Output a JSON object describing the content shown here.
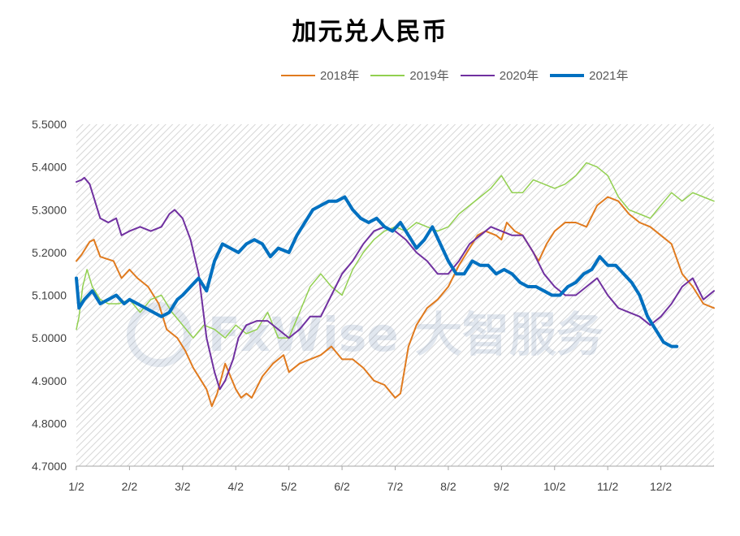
{
  "chart_data": {
    "type": "line",
    "title": "加元兑人民币",
    "xlabel": "",
    "ylabel": "",
    "ylim": [
      4.7,
      5.5
    ],
    "yticks": [
      "5.5000",
      "5.4000",
      "5.3000",
      "5.2000",
      "5.1000",
      "5.0000",
      "4.9000",
      "4.8000",
      "4.7000"
    ],
    "x_tick_labels": [
      "1/2",
      "2/2",
      "3/2",
      "4/2",
      "5/2",
      "6/2",
      "7/2",
      "8/2",
      "9/2",
      "10/2",
      "11/2",
      "12/2"
    ],
    "x_unit": "month (Jan=0 … Dec=11)",
    "grid": "hatched background",
    "legend_position": "top-right",
    "watermark": "FxWise 大智服务",
    "series": [
      {
        "name": "2018年",
        "color": "#E07A1E",
        "line_width": 2,
        "x": [
          0,
          0.1,
          0.25,
          0.33,
          0.45,
          0.7,
          0.85,
          1.0,
          1.15,
          1.35,
          1.55,
          1.7,
          1.9,
          2.05,
          2.2,
          2.35,
          2.45,
          2.55,
          2.65,
          2.8,
          3.0,
          3.1,
          3.2,
          3.3,
          3.5,
          3.7,
          3.9,
          4.0,
          4.2,
          4.4,
          4.6,
          4.8,
          5.0,
          5.2,
          5.4,
          5.6,
          5.8,
          6.0,
          6.1,
          6.25,
          6.4,
          6.6,
          6.8,
          7.0,
          7.2,
          7.4,
          7.55,
          7.7,
          7.9,
          8.0,
          8.1,
          8.25,
          8.4,
          8.55,
          8.7,
          8.85,
          9.0,
          9.2,
          9.4,
          9.6,
          9.8,
          10.0,
          10.2,
          10.4,
          10.6,
          10.8,
          11.0,
          11.2,
          11.4,
          11.6,
          11.8,
          12.0
        ],
        "y": [
          5.18,
          5.195,
          5.225,
          5.23,
          5.19,
          5.18,
          5.14,
          5.16,
          5.14,
          5.12,
          5.08,
          5.02,
          5.0,
          4.97,
          4.93,
          4.9,
          4.88,
          4.84,
          4.87,
          4.94,
          4.88,
          4.86,
          4.87,
          4.86,
          4.91,
          4.94,
          4.96,
          4.92,
          4.94,
          4.95,
          4.96,
          4.98,
          4.95,
          4.95,
          4.93,
          4.9,
          4.89,
          4.86,
          4.87,
          4.98,
          5.03,
          5.07,
          5.09,
          5.12,
          5.17,
          5.21,
          5.24,
          5.25,
          5.24,
          5.23,
          5.27,
          5.25,
          5.24,
          5.21,
          5.18,
          5.22,
          5.25,
          5.27,
          5.27,
          5.26,
          5.31,
          5.33,
          5.32,
          5.29,
          5.27,
          5.26,
          5.24,
          5.22,
          5.15,
          5.12,
          5.08,
          5.07
        ]
      },
      {
        "name": "2019年",
        "color": "#92D050",
        "line_width": 1.5,
        "x": [
          0,
          0.05,
          0.12,
          0.2,
          0.3,
          0.45,
          0.6,
          0.8,
          1.0,
          1.2,
          1.4,
          1.6,
          1.8,
          2.0,
          2.2,
          2.4,
          2.6,
          2.8,
          3.0,
          3.2,
          3.4,
          3.6,
          3.8,
          4.0,
          4.2,
          4.4,
          4.6,
          4.8,
          5.0,
          5.2,
          5.4,
          5.6,
          5.8,
          6.0,
          6.2,
          6.4,
          6.6,
          6.8,
          7.0,
          7.2,
          7.4,
          7.6,
          7.8,
          8.0,
          8.2,
          8.4,
          8.6,
          8.8,
          9.0,
          9.2,
          9.4,
          9.6,
          9.8,
          10.0,
          10.2,
          10.4,
          10.6,
          10.8,
          11.0,
          11.2,
          11.4,
          11.6,
          11.8,
          12.0
        ],
        "y": [
          5.02,
          5.05,
          5.12,
          5.16,
          5.12,
          5.09,
          5.08,
          5.08,
          5.09,
          5.06,
          5.09,
          5.1,
          5.06,
          5.03,
          5.0,
          5.03,
          5.02,
          5.0,
          5.03,
          5.01,
          5.02,
          5.06,
          5.0,
          5.0,
          5.06,
          5.12,
          5.15,
          5.12,
          5.1,
          5.16,
          5.2,
          5.23,
          5.25,
          5.26,
          5.25,
          5.27,
          5.26,
          5.25,
          5.26,
          5.29,
          5.31,
          5.33,
          5.35,
          5.38,
          5.34,
          5.34,
          5.37,
          5.36,
          5.35,
          5.36,
          5.38,
          5.41,
          5.4,
          5.38,
          5.33,
          5.3,
          5.29,
          5.28,
          5.31,
          5.34,
          5.32,
          5.34,
          5.33,
          5.32
        ]
      },
      {
        "name": "2020年",
        "color": "#7030A0",
        "line_width": 2,
        "x": [
          0,
          0.1,
          0.15,
          0.25,
          0.35,
          0.45,
          0.6,
          0.75,
          0.85,
          1.0,
          1.2,
          1.4,
          1.6,
          1.75,
          1.85,
          2.0,
          2.15,
          2.3,
          2.45,
          2.6,
          2.7,
          2.8,
          2.95,
          3.05,
          3.2,
          3.4,
          3.6,
          3.8,
          4.0,
          4.2,
          4.4,
          4.6,
          4.8,
          5.0,
          5.2,
          5.4,
          5.6,
          5.8,
          6.0,
          6.2,
          6.4,
          6.6,
          6.8,
          7.0,
          7.2,
          7.4,
          7.6,
          7.8,
          8.0,
          8.2,
          8.4,
          8.6,
          8.8,
          9.0,
          9.2,
          9.4,
          9.6,
          9.8,
          10.0,
          10.2,
          10.4,
          10.6,
          10.8,
          11.0,
          11.2,
          11.4,
          11.6,
          11.8,
          12.0
        ],
        "y": [
          5.365,
          5.37,
          5.375,
          5.36,
          5.32,
          5.28,
          5.27,
          5.28,
          5.24,
          5.25,
          5.26,
          5.25,
          5.26,
          5.29,
          5.3,
          5.28,
          5.23,
          5.15,
          5.0,
          4.92,
          4.88,
          4.9,
          4.95,
          5.0,
          5.03,
          5.04,
          5.04,
          5.02,
          5.0,
          5.02,
          5.05,
          5.05,
          5.1,
          5.15,
          5.18,
          5.22,
          5.25,
          5.26,
          5.25,
          5.23,
          5.2,
          5.18,
          5.15,
          5.15,
          5.18,
          5.22,
          5.24,
          5.26,
          5.25,
          5.24,
          5.24,
          5.2,
          5.15,
          5.12,
          5.1,
          5.1,
          5.12,
          5.14,
          5.1,
          5.07,
          5.06,
          5.05,
          5.03,
          5.05,
          5.08,
          5.12,
          5.14,
          5.09,
          5.11
        ]
      },
      {
        "name": "2021年",
        "color": "#0070C0",
        "line_width": 4,
        "x": [
          0,
          0.05,
          0.15,
          0.3,
          0.45,
          0.6,
          0.75,
          0.9,
          1.0,
          1.15,
          1.3,
          1.45,
          1.6,
          1.75,
          1.9,
          2.0,
          2.15,
          2.3,
          2.45,
          2.6,
          2.75,
          2.9,
          3.05,
          3.2,
          3.35,
          3.5,
          3.65,
          3.8,
          4.0,
          4.15,
          4.3,
          4.45,
          4.6,
          4.75,
          4.9,
          5.05,
          5.2,
          5.35,
          5.5,
          5.65,
          5.8,
          5.95,
          6.1,
          6.25,
          6.4,
          6.55,
          6.7,
          6.85,
          7.0,
          7.15,
          7.3,
          7.45,
          7.6,
          7.75,
          7.9,
          8.05,
          8.2,
          8.35,
          8.5,
          8.65,
          8.8,
          8.95,
          9.1,
          9.25,
          9.4,
          9.55,
          9.7,
          9.85,
          10.0,
          10.15,
          10.3,
          10.45,
          10.6,
          10.75,
          10.9,
          11.05,
          11.2,
          11.3
        ],
        "y": [
          5.14,
          5.07,
          5.09,
          5.11,
          5.08,
          5.09,
          5.1,
          5.08,
          5.09,
          5.08,
          5.07,
          5.06,
          5.05,
          5.06,
          5.09,
          5.1,
          5.12,
          5.14,
          5.11,
          5.18,
          5.22,
          5.21,
          5.2,
          5.22,
          5.23,
          5.22,
          5.19,
          5.21,
          5.2,
          5.24,
          5.27,
          5.3,
          5.31,
          5.32,
          5.32,
          5.33,
          5.3,
          5.28,
          5.27,
          5.28,
          5.26,
          5.25,
          5.27,
          5.24,
          5.21,
          5.23,
          5.26,
          5.22,
          5.18,
          5.15,
          5.15,
          5.18,
          5.17,
          5.17,
          5.15,
          5.16,
          5.15,
          5.13,
          5.12,
          5.12,
          5.11,
          5.1,
          5.1,
          5.12,
          5.13,
          5.15,
          5.16,
          5.19,
          5.17,
          5.17,
          5.15,
          5.13,
          5.1,
          5.05,
          5.02,
          4.99,
          4.98,
          4.98
        ]
      }
    ]
  }
}
